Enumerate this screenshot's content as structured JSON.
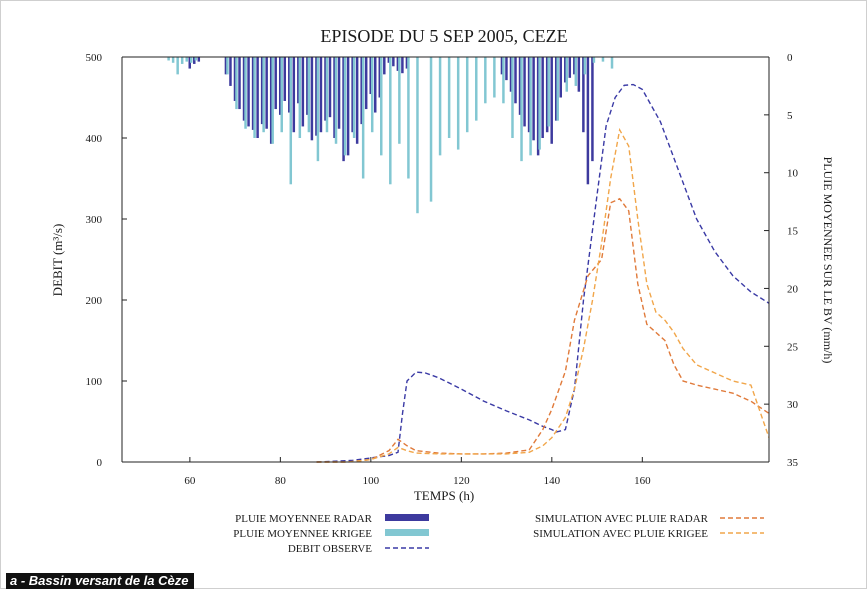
{
  "caption": "a - Bassin versant de la Cèze",
  "chart_data": {
    "type": "line",
    "title": "EPISODE DU 5 SEP 2005, CEZE",
    "xlabel": "TEMPS (h)",
    "ylabel": "DEBIT (m³/s)",
    "y2label": "PLUIE MOYENNEE SUR LE BV (mm/h)",
    "xlim": [
      45,
      188
    ],
    "ylim": [
      0,
      500
    ],
    "y2lim": [
      0,
      35
    ],
    "y2_inverted": true,
    "x_ticks": [
      60,
      80,
      100,
      120,
      140,
      160
    ],
    "y_ticks": [
      0,
      100,
      200,
      300,
      400,
      500
    ],
    "y2_ticks": [
      0,
      5,
      10,
      15,
      20,
      25,
      30,
      35
    ],
    "legend_position": "bottom",
    "colors": {
      "radar_bar": "#3d3a9e",
      "krige_bar": "#82c7d2",
      "observed": "#3a3aa5",
      "sim_radar": "#e07a3a",
      "sim_krige": "#f1a64a"
    },
    "series": [
      {
        "name": "DEBIT OBSERVE",
        "style": "dashed",
        "x": [
          88,
          96,
          100,
          104,
          106,
          107,
          108,
          110,
          112,
          115,
          120,
          125,
          130,
          135,
          138,
          140,
          141,
          143,
          145,
          147,
          150,
          152,
          154,
          156,
          158,
          160,
          164,
          168,
          172,
          176,
          180,
          184,
          188
        ],
        "y": [
          0,
          2,
          5,
          8,
          12,
          60,
          100,
          111,
          110,
          104,
          90,
          75,
          63,
          52,
          44,
          40,
          37,
          40,
          90,
          200,
          330,
          415,
          450,
          465,
          466,
          460,
          420,
          360,
          300,
          260,
          230,
          210,
          196
        ]
      },
      {
        "name": "SIMULATION AVEC PLUIE RADAR",
        "style": "dashed",
        "x": [
          88,
          95,
          100,
          104,
          106,
          108,
          110,
          115,
          120,
          125,
          130,
          135,
          138,
          140,
          143,
          145,
          148,
          151,
          153,
          155,
          157,
          159,
          161,
          163,
          165,
          167,
          169,
          172,
          176,
          180,
          184,
          188
        ],
        "y": [
          0,
          0,
          3,
          14,
          28,
          20,
          14,
          11,
          10,
          10,
          11,
          15,
          40,
          65,
          112,
          175,
          230,
          250,
          320,
          325,
          310,
          220,
          170,
          160,
          150,
          120,
          100,
          95,
          90,
          85,
          75,
          60
        ]
      },
      {
        "name": "SIMULATION AVEC PLUIE KRIGEE",
        "style": "dashed",
        "x": [
          88,
          95,
          100,
          104,
          106,
          108,
          110,
          115,
          120,
          125,
          130,
          135,
          138,
          140,
          143,
          145,
          147,
          149,
          151,
          153,
          155,
          157,
          159,
          161,
          163,
          165,
          167,
          169,
          172,
          176,
          180,
          184,
          188
        ],
        "y": [
          0,
          0,
          3,
          10,
          18,
          14,
          11,
          10,
          10,
          10,
          10,
          12,
          20,
          30,
          55,
          90,
          140,
          200,
          270,
          350,
          410,
          390,
          300,
          220,
          185,
          175,
          160,
          140,
          120,
          110,
          100,
          95,
          30
        ]
      }
    ],
    "bars": [
      {
        "name": "PLUIE MOYENNEE RADAR",
        "x": [
          60,
          61,
          62,
          68,
          69,
          70,
          71,
          72,
          73,
          74,
          75,
          76,
          77,
          78,
          79,
          80,
          81,
          82,
          83,
          84,
          85,
          86,
          87,
          88,
          89,
          90,
          91,
          92,
          93,
          94,
          95,
          96,
          97,
          98,
          99,
          100,
          101,
          102,
          103,
          104,
          105,
          106,
          107,
          108,
          129,
          130,
          131,
          132,
          133,
          134,
          135,
          136,
          137,
          138,
          139,
          140,
          141,
          142,
          143,
          144,
          145,
          146,
          147,
          148,
          149
        ],
        "values": [
          1.0,
          0.6,
          0.4,
          1.5,
          2.5,
          3.8,
          4.5,
          5.5,
          6.0,
          6.3,
          7.0,
          5.8,
          6.2,
          7.5,
          4.5,
          5.0,
          3.8,
          4.8,
          6.5,
          4.0,
          6.0,
          5.0,
          7.2,
          6.8,
          6.5,
          5.5,
          5.2,
          7.0,
          6.2,
          9.0,
          8.5,
          6.5,
          7.5,
          5.8,
          4.5,
          3.2,
          4.8,
          3.5,
          1.5,
          0.5,
          0.8,
          1.2,
          1.4,
          1.0,
          1.5,
          2.0,
          3.0,
          4.0,
          5.0,
          6.0,
          6.5,
          7.2,
          8.5,
          7.0,
          6.5,
          7.5,
          5.5,
          3.5,
          2.2,
          1.8,
          1.5,
          3.0,
          6.5,
          11.0,
          9.0
        ]
      },
      {
        "name": "PLUIE MOYENNEE KRIGEE",
        "x": [
          55,
          56,
          57,
          58,
          59,
          60,
          61,
          68,
          70,
          72,
          74,
          76,
          78,
          80,
          82,
          84,
          86,
          88,
          90,
          92,
          94,
          96,
          98,
          100,
          102,
          104,
          106,
          108,
          110,
          113,
          115,
          117,
          119,
          121,
          123,
          125,
          127,
          129,
          131,
          133,
          135,
          137,
          139,
          141,
          143,
          145,
          147,
          149,
          151,
          153
        ],
        "values": [
          0.3,
          0.5,
          1.5,
          0.6,
          0.4,
          0.5,
          0.3,
          1.5,
          4.5,
          6.2,
          7.0,
          6.5,
          7.5,
          6.5,
          11.0,
          7.0,
          6.5,
          9.0,
          6.5,
          7.5,
          8.5,
          7.0,
          10.5,
          6.5,
          8.5,
          11.0,
          7.5,
          10.5,
          13.5,
          12.5,
          8.5,
          7.0,
          8.0,
          6.5,
          5.5,
          4.0,
          3.5,
          4.0,
          7.0,
          9.0,
          8.5,
          8.0,
          6.0,
          5.5,
          3.0,
          2.5,
          1.5,
          0.5,
          0.4,
          1.0
        ]
      }
    ],
    "legend": [
      {
        "label": "PLUIE MOYENNEE RADAR",
        "kind": "bar",
        "key": "radar_bar"
      },
      {
        "label": "PLUIE MOYENNEE KRIGEE",
        "kind": "bar",
        "key": "krige_bar"
      },
      {
        "label": "DEBIT OBSERVE",
        "kind": "line",
        "key": "observed"
      },
      {
        "label": "SIMULATION AVEC PLUIE RADAR",
        "kind": "line",
        "key": "sim_radar"
      },
      {
        "label": "SIMULATION AVEC PLUIE KRIGEE",
        "kind": "line",
        "key": "sim_krige"
      }
    ]
  }
}
